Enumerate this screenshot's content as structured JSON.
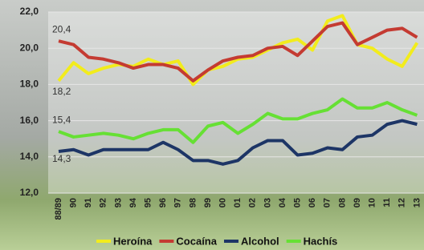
{
  "chart_data": {
    "type": "line",
    "categories": [
      "88/89",
      "90",
      "91",
      "92",
      "93",
      "94",
      "95",
      "96",
      "97",
      "98",
      "99",
      "00",
      "01",
      "02",
      "03",
      "04",
      "05",
      "06",
      "07",
      "08",
      "09",
      "10",
      "11",
      "12",
      "13"
    ],
    "ylim": [
      12,
      22
    ],
    "yticks": [
      {
        "value": 12,
        "label": "12,0"
      },
      {
        "value": 14,
        "label": "14,0"
      },
      {
        "value": 16,
        "label": "16,0"
      },
      {
        "value": 18,
        "label": "18,0"
      },
      {
        "value": 20,
        "label": "20,0"
      },
      {
        "value": 22,
        "label": "22,0"
      }
    ],
    "grid": true,
    "legend": "bottom",
    "series": [
      {
        "name": "Heroína",
        "color": "#f2ec1c",
        "values": [
          18.2,
          19.2,
          18.6,
          18.9,
          19.1,
          19.0,
          19.4,
          19.1,
          19.3,
          18.0,
          18.8,
          19.0,
          19.4,
          19.5,
          19.9,
          20.3,
          20.5,
          19.9,
          21.5,
          21.8,
          20.2,
          20.0,
          19.4,
          19.0,
          20.3
        ],
        "value_labels": [
          "18,2",
          null,
          null,
          null,
          null,
          null,
          null,
          null,
          null,
          null,
          null,
          null,
          null,
          null,
          null,
          null,
          null,
          null,
          null,
          null,
          null,
          null,
          null,
          null,
          null
        ]
      },
      {
        "name": "Cocaína",
        "color": "#c43b32",
        "values": [
          20.4,
          20.2,
          19.5,
          19.4,
          19.2,
          18.9,
          19.1,
          19.1,
          18.9,
          18.2,
          18.8,
          19.3,
          19.5,
          19.6,
          20.0,
          20.1,
          19.6,
          20.4,
          21.2,
          21.4,
          20.2,
          20.6,
          21.0,
          21.1,
          20.6
        ],
        "value_labels": [
          "20,4",
          null,
          null,
          null,
          null,
          null,
          null,
          null,
          null,
          null,
          null,
          null,
          null,
          null,
          null,
          null,
          null,
          null,
          null,
          null,
          null,
          null,
          null,
          null,
          null
        ]
      },
      {
        "name": "Alcohol",
        "color": "#1d3566",
        "values": [
          14.3,
          14.4,
          14.1,
          14.4,
          14.4,
          14.4,
          14.4,
          14.8,
          14.4,
          13.8,
          13.8,
          13.6,
          13.8,
          14.5,
          14.9,
          14.9,
          14.1,
          14.2,
          14.5,
          14.4,
          15.1,
          15.2,
          15.8,
          16.0,
          15.8
        ],
        "value_labels": [
          "14,3",
          null,
          null,
          null,
          null,
          null,
          null,
          null,
          null,
          null,
          null,
          null,
          null,
          null,
          null,
          null,
          null,
          null,
          null,
          null,
          null,
          null,
          null,
          null,
          null
        ]
      },
      {
        "name": "Hachís",
        "color": "#66e034",
        "values": [
          15.4,
          15.1,
          15.2,
          15.3,
          15.2,
          15.0,
          15.3,
          15.5,
          15.5,
          14.8,
          15.7,
          15.9,
          15.3,
          15.8,
          16.4,
          16.1,
          16.1,
          16.4,
          16.6,
          17.2,
          16.7,
          16.7,
          17.0,
          16.6,
          16.3
        ],
        "value_labels": [
          "15,4",
          null,
          null,
          null,
          null,
          null,
          null,
          null,
          null,
          null,
          null,
          null,
          null,
          null,
          null,
          null,
          null,
          null,
          null,
          null,
          null,
          null,
          null,
          null,
          null
        ]
      }
    ]
  }
}
